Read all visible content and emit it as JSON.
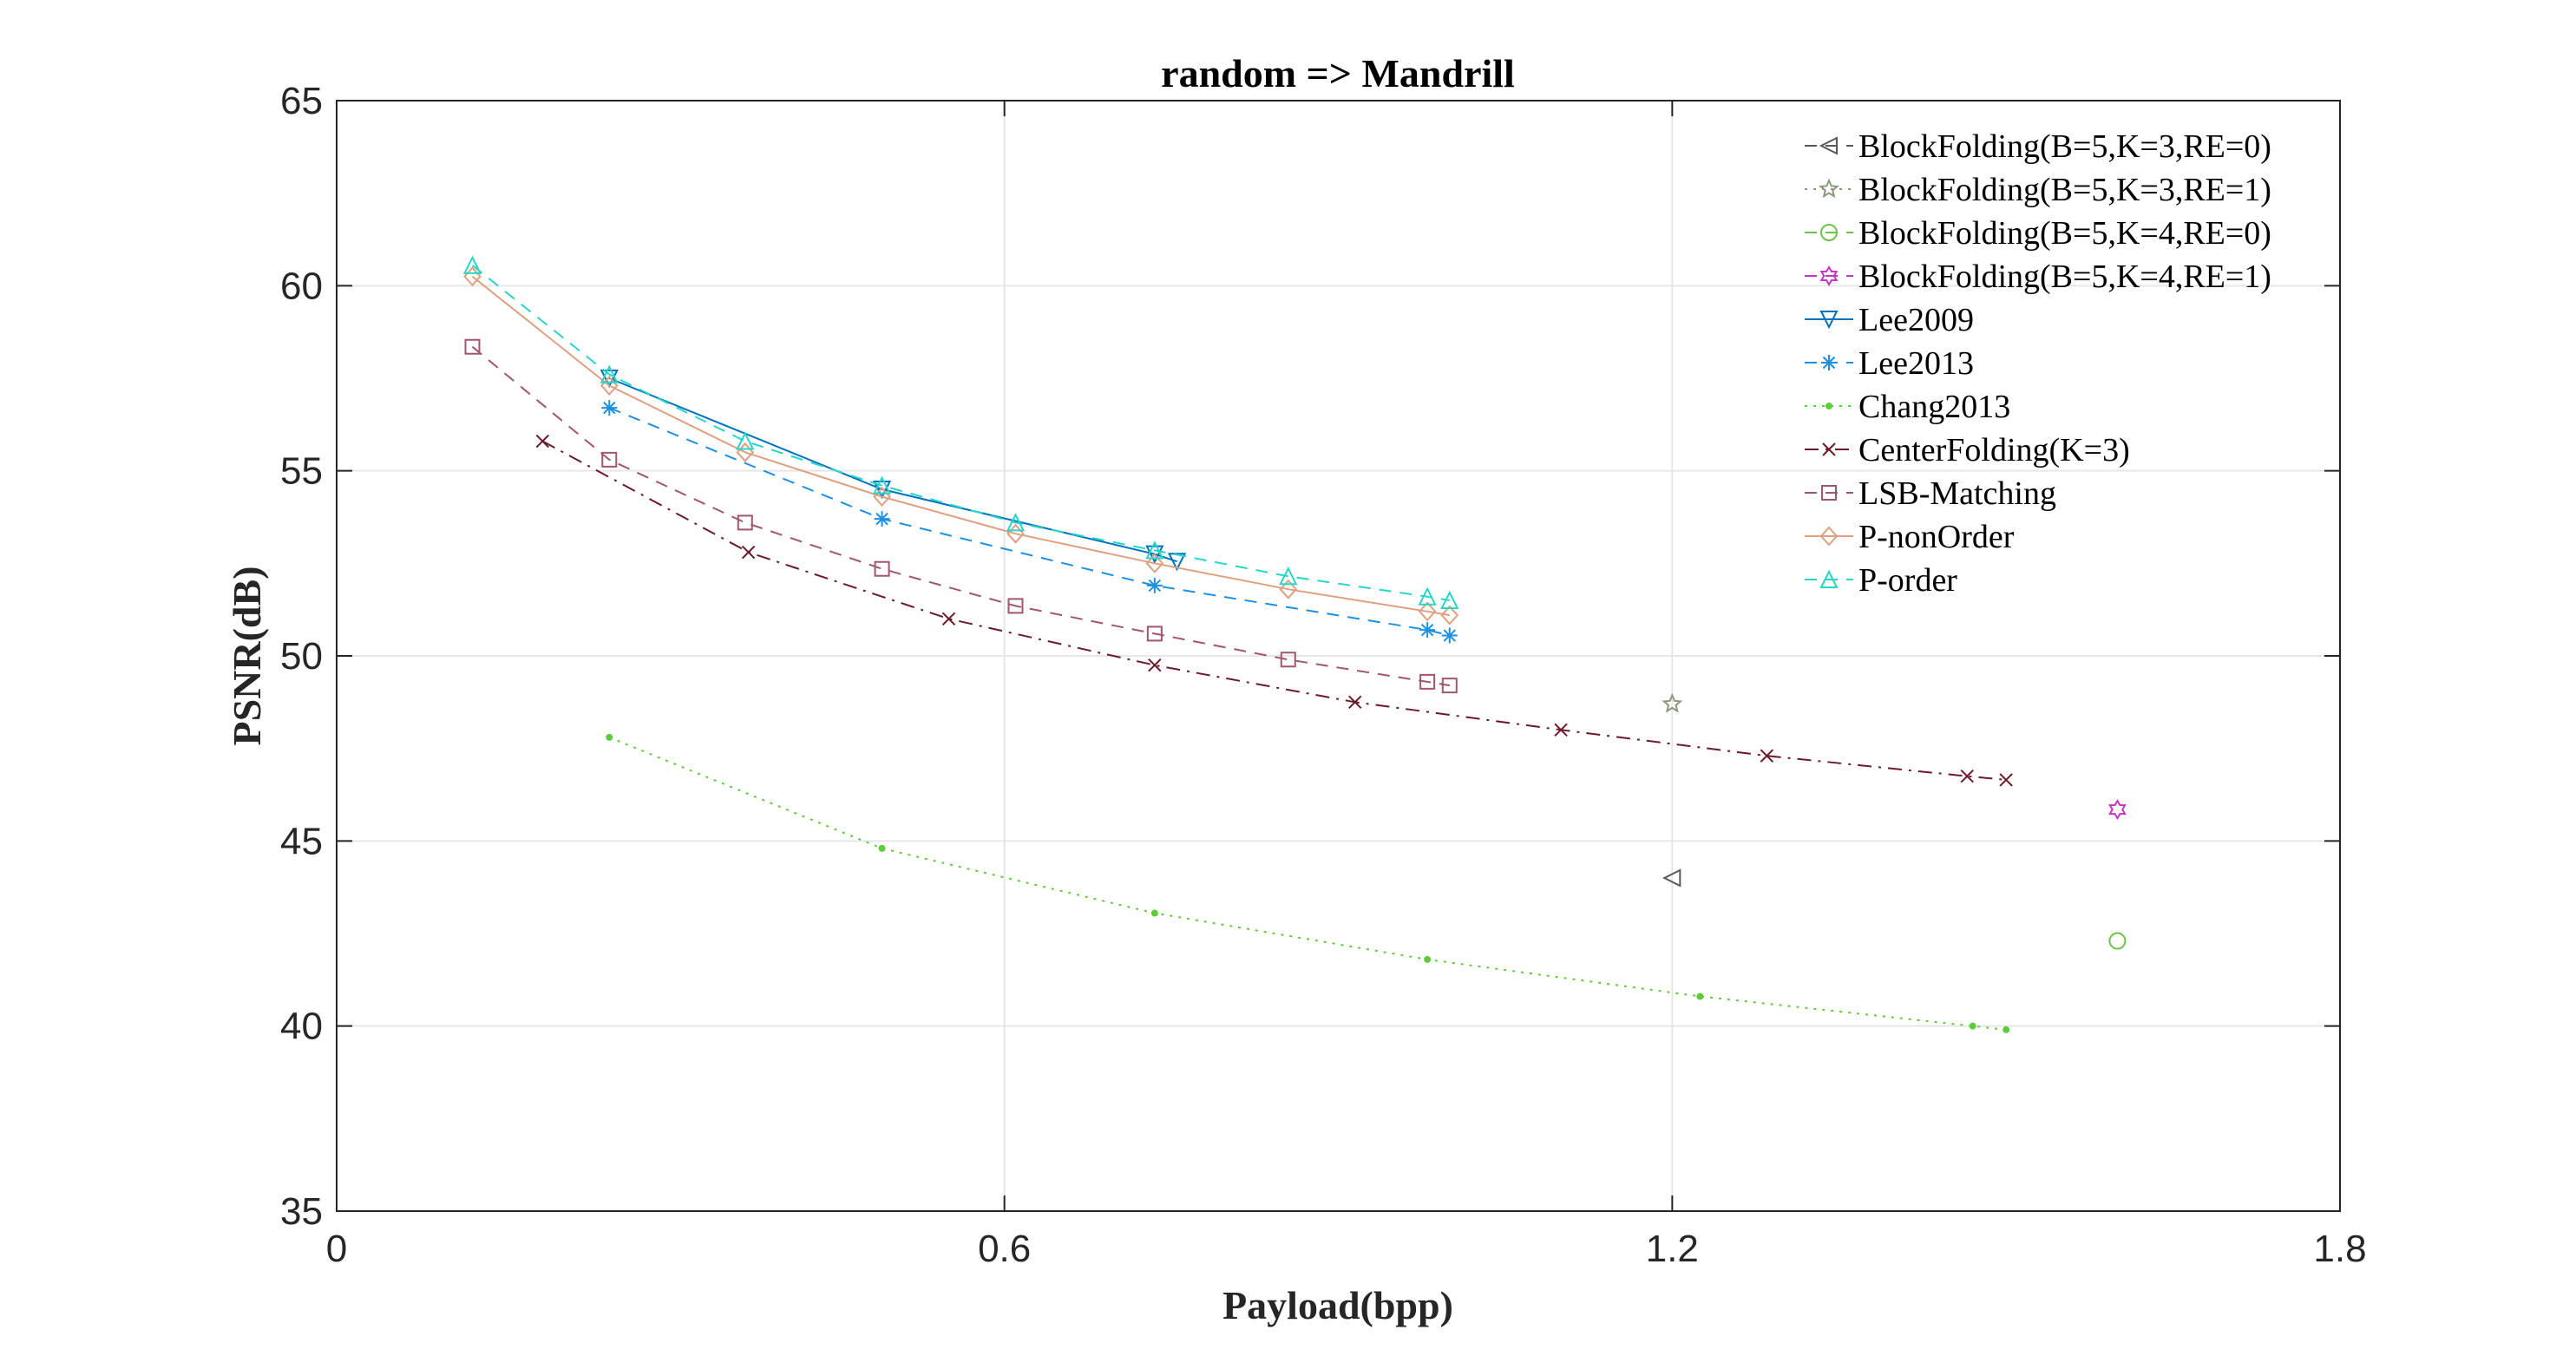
{
  "chart_data": {
    "type": "line",
    "title": "random => Mandrill",
    "xlabel": "Payload(bpp)",
    "ylabel": "PSNR(dB)",
    "xlim": [
      0,
      1.8
    ],
    "ylim": [
      35,
      65
    ],
    "xticks": [
      0,
      0.6,
      1.2,
      1.8
    ],
    "xtick_labels": [
      "0",
      "0.6",
      "1.2",
      "1.8"
    ],
    "yticks": [
      35,
      40,
      45,
      50,
      55,
      60,
      65
    ],
    "ytick_labels": [
      "35",
      "40",
      "45",
      "50",
      "55",
      "60",
      "65"
    ],
    "grid": true,
    "legend_position": "top-right",
    "series": [
      {
        "name": "BlockFolding(B=5,K=3,RE=0)",
        "color": "#595959",
        "marker": "triangle-left",
        "dash": "dashed",
        "x": [
          1.2
        ],
        "y": [
          44.0
        ]
      },
      {
        "name": "BlockFolding(B=5,K=3,RE=1)",
        "color": "#8a9a7a",
        "marker": "star",
        "dash": "dotted",
        "x": [
          1.2
        ],
        "y": [
          48.7
        ]
      },
      {
        "name": "BlockFolding(B=5,K=4,RE=0)",
        "color": "#6cc24a",
        "marker": "circle",
        "dash": "dashed",
        "x": [
          1.6
        ],
        "y": [
          42.3
        ]
      },
      {
        "name": "BlockFolding(B=5,K=4,RE=1)",
        "color": "#c832c8",
        "marker": "hexagram",
        "dash": "dashed",
        "x": [
          1.6
        ],
        "y": [
          45.85
        ]
      },
      {
        "name": "Lee2009",
        "color": "#0072bd",
        "marker": "triangle-down",
        "dash": "solid",
        "x": [
          0.245,
          0.49,
          0.735,
          0.755
        ],
        "y": [
          57.5,
          54.5,
          52.75,
          52.55
        ]
      },
      {
        "name": "Lee2013",
        "color": "#1e90e0",
        "marker": "asterisk",
        "dash": "dashed",
        "x": [
          0.245,
          0.49,
          0.735,
          0.98,
          1.0
        ],
        "y": [
          56.7,
          53.7,
          51.9,
          50.7,
          50.55
        ]
      },
      {
        "name": "Chang2013",
        "color": "#5ecb3a",
        "marker": "point",
        "dash": "dotted",
        "x": [
          0.245,
          0.49,
          0.735,
          0.98,
          1.225,
          1.47,
          1.5
        ],
        "y": [
          47.8,
          44.8,
          43.05,
          41.8,
          40.8,
          40.0,
          39.9
        ]
      },
      {
        "name": "CenterFolding(K=3)",
        "color": "#6b1a2a",
        "marker": "x",
        "dash": "dashdot",
        "x": [
          0.185,
          0.37,
          0.55,
          0.735,
          0.915,
          1.1,
          1.285,
          1.465,
          1.5
        ],
        "y": [
          55.8,
          52.8,
          51.0,
          49.75,
          48.75,
          48.0,
          47.3,
          46.75,
          46.65
        ]
      },
      {
        "name": "LSB-Matching",
        "color": "#a0566b",
        "marker": "square",
        "dash": "dashed",
        "x": [
          0.122,
          0.245,
          0.367,
          0.49,
          0.61,
          0.735,
          0.855,
          0.98,
          1.0
        ],
        "y": [
          58.35,
          55.3,
          53.6,
          52.35,
          51.35,
          50.6,
          49.9,
          49.3,
          49.2
        ]
      },
      {
        "name": "P-nonOrder",
        "color": "#e0a080",
        "marker": "diamond",
        "dash": "solid",
        "x": [
          0.122,
          0.245,
          0.367,
          0.49,
          0.61,
          0.735,
          0.855,
          0.98,
          1.0
        ],
        "y": [
          60.25,
          57.3,
          55.5,
          54.3,
          53.3,
          52.5,
          51.8,
          51.2,
          51.1
        ]
      },
      {
        "name": "P-order",
        "color": "#28d6c8",
        "marker": "triangle-up",
        "dash": "dashed",
        "x": [
          0.122,
          0.245,
          0.367,
          0.49,
          0.61,
          0.735,
          0.855,
          0.98,
          1.0
        ],
        "y": [
          60.55,
          57.6,
          55.8,
          54.6,
          53.6,
          52.85,
          52.15,
          51.6,
          51.5
        ]
      }
    ]
  }
}
